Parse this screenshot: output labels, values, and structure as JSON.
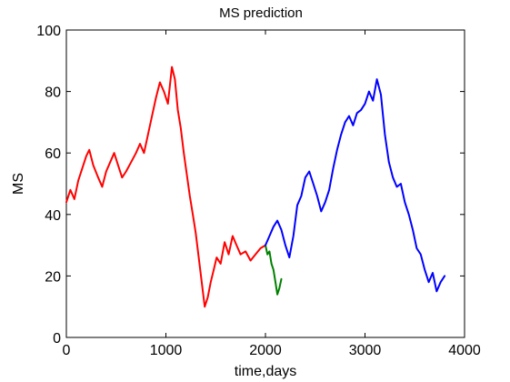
{
  "chart_data": {
    "type": "line",
    "title": "MS prediction",
    "xlabel": "time,days",
    "ylabel": "MS",
    "xlim": [
      0,
      4000
    ],
    "ylim": [
      0,
      100
    ],
    "xticks": [
      0,
      1000,
      2000,
      3000,
      4000
    ],
    "yticks": [
      0,
      20,
      40,
      60,
      80,
      100
    ],
    "grid": false,
    "series": [
      {
        "color": "#ff0000",
        "points": [
          [
            0,
            44
          ],
          [
            40,
            48
          ],
          [
            80,
            45
          ],
          [
            120,
            51
          ],
          [
            160,
            55
          ],
          [
            200,
            59
          ],
          [
            230,
            61
          ],
          [
            270,
            56
          ],
          [
            320,
            52
          ],
          [
            360,
            49
          ],
          [
            400,
            54
          ],
          [
            440,
            57
          ],
          [
            480,
            60
          ],
          [
            520,
            56
          ],
          [
            560,
            52
          ],
          [
            600,
            54
          ],
          [
            650,
            57
          ],
          [
            700,
            60
          ],
          [
            740,
            63
          ],
          [
            780,
            60
          ],
          [
            820,
            66
          ],
          [
            860,
            72
          ],
          [
            900,
            78
          ],
          [
            940,
            83
          ],
          [
            980,
            80
          ],
          [
            1020,
            76
          ],
          [
            1060,
            88
          ],
          [
            1090,
            84
          ],
          [
            1120,
            74
          ],
          [
            1150,
            68
          ],
          [
            1180,
            60
          ],
          [
            1210,
            53
          ],
          [
            1240,
            46
          ],
          [
            1270,
            40
          ],
          [
            1300,
            34
          ],
          [
            1330,
            26
          ],
          [
            1360,
            18
          ],
          [
            1390,
            10
          ],
          [
            1420,
            13
          ],
          [
            1450,
            18
          ],
          [
            1480,
            22
          ],
          [
            1510,
            26
          ],
          [
            1550,
            24
          ],
          [
            1590,
            31
          ],
          [
            1630,
            27
          ],
          [
            1670,
            33
          ],
          [
            1710,
            30
          ],
          [
            1750,
            27
          ],
          [
            1800,
            28
          ],
          [
            1850,
            25
          ],
          [
            1900,
            27
          ],
          [
            1950,
            29
          ],
          [
            2000,
            30
          ]
        ]
      },
      {
        "color": "#008000",
        "points": [
          [
            2000,
            30
          ],
          [
            2020,
            27
          ],
          [
            2040,
            28
          ],
          [
            2060,
            24
          ],
          [
            2080,
            22
          ],
          [
            2100,
            18
          ],
          [
            2120,
            14
          ],
          [
            2140,
            16
          ],
          [
            2160,
            19
          ]
        ]
      },
      {
        "color": "#0000ff",
        "points": [
          [
            2000,
            30
          ],
          [
            2040,
            33
          ],
          [
            2080,
            36
          ],
          [
            2120,
            38
          ],
          [
            2160,
            35
          ],
          [
            2200,
            30
          ],
          [
            2240,
            26
          ],
          [
            2280,
            33
          ],
          [
            2320,
            43
          ],
          [
            2360,
            46
          ],
          [
            2400,
            52
          ],
          [
            2440,
            54
          ],
          [
            2480,
            50
          ],
          [
            2520,
            46
          ],
          [
            2560,
            41
          ],
          [
            2600,
            44
          ],
          [
            2640,
            48
          ],
          [
            2680,
            55
          ],
          [
            2720,
            61
          ],
          [
            2760,
            66
          ],
          [
            2800,
            70
          ],
          [
            2840,
            72
          ],
          [
            2880,
            69
          ],
          [
            2920,
            73
          ],
          [
            2960,
            74
          ],
          [
            3000,
            76
          ],
          [
            3040,
            80
          ],
          [
            3080,
            77
          ],
          [
            3120,
            84
          ],
          [
            3160,
            79
          ],
          [
            3200,
            66
          ],
          [
            3240,
            57
          ],
          [
            3280,
            52
          ],
          [
            3320,
            49
          ],
          [
            3360,
            50
          ],
          [
            3400,
            44
          ],
          [
            3440,
            40
          ],
          [
            3480,
            35
          ],
          [
            3520,
            29
          ],
          [
            3560,
            27
          ],
          [
            3600,
            22
          ],
          [
            3640,
            18
          ],
          [
            3680,
            21
          ],
          [
            3720,
            15
          ],
          [
            3760,
            18
          ],
          [
            3800,
            20
          ]
        ]
      }
    ]
  }
}
